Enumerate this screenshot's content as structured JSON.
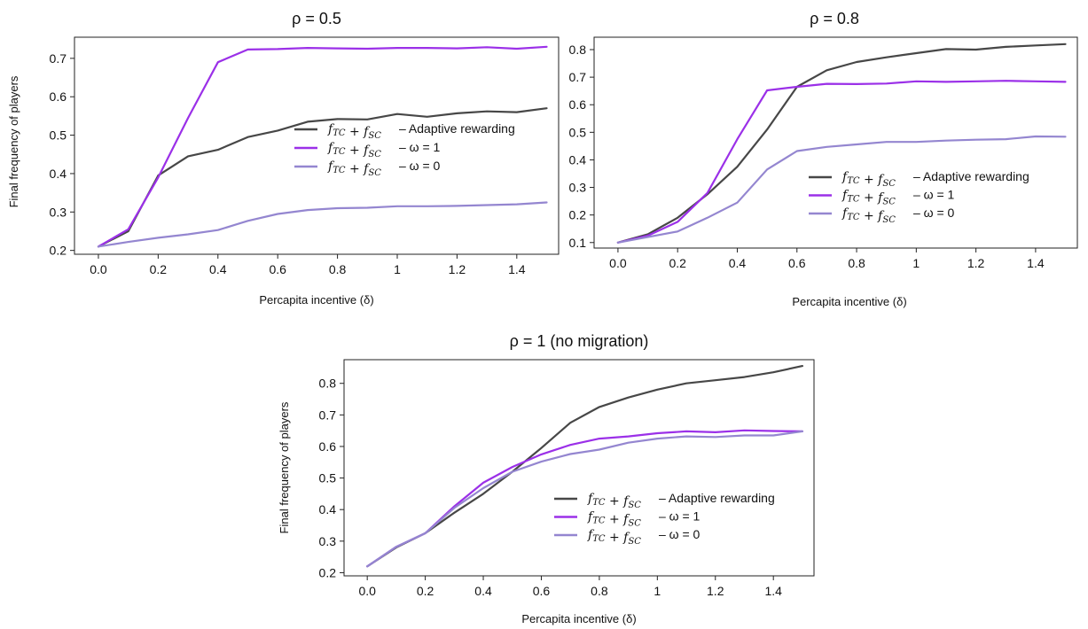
{
  "chart_data": [
    {
      "type": "line",
      "title": "ρ = 0.5",
      "xlabel": "Percapita incentive (δ)",
      "ylabel": "Final frequency of players",
      "xlim": [
        -0.08,
        1.54
      ],
      "ylim": [
        0.19,
        0.755
      ],
      "xticks": [
        0,
        0.2,
        0.4,
        0.6,
        0.8,
        1,
        1.2,
        1.4
      ],
      "xtick_labels": [
        "0.0",
        "0.2",
        "0.4",
        "0.6",
        "0.8",
        "1",
        "1.2",
        "1.4"
      ],
      "yticks": [
        0.2,
        0.3,
        0.4,
        0.5,
        0.6,
        0.7
      ],
      "ytick_labels": [
        "0.2",
        "0.3",
        "0.4",
        "0.5",
        "0.6",
        "0.7"
      ],
      "legend_position": "center-right",
      "x": [
        0,
        0.1,
        0.2,
        0.3,
        0.4,
        0.5,
        0.6,
        0.7,
        0.8,
        0.9,
        1.0,
        1.1,
        1.2,
        1.3,
        1.4,
        1.5
      ],
      "series": [
        {
          "name": "fTC + fSC – Adaptive rewarding",
          "legend_main": "fTC + fSC",
          "legend_tail": "– Adaptive rewarding",
          "color": "#474747",
          "values": [
            0.21,
            0.25,
            0.395,
            0.445,
            0.462,
            0.495,
            0.512,
            0.535,
            0.542,
            0.541,
            0.555,
            0.548,
            0.557,
            0.562,
            0.56,
            0.57
          ]
        },
        {
          "name": "fTC + fSC – ω = 1",
          "legend_main": "fTC + fSC",
          "legend_tail": "– ω = 1",
          "color": "#9b30e8",
          "values": [
            0.21,
            0.255,
            0.39,
            0.545,
            0.69,
            0.723,
            0.724,
            0.727,
            0.726,
            0.725,
            0.727,
            0.727,
            0.726,
            0.729,
            0.725,
            0.73
          ]
        },
        {
          "name": "fTC + fSC – ω = 0",
          "legend_main": "fTC + fSC",
          "legend_tail": "– ω = 0",
          "color": "#9486d0",
          "values": [
            0.21,
            0.222,
            0.233,
            0.242,
            0.253,
            0.277,
            0.295,
            0.305,
            0.31,
            0.311,
            0.315,
            0.315,
            0.316,
            0.318,
            0.32,
            0.325
          ]
        }
      ]
    },
    {
      "type": "line",
      "title": "ρ = 0.8",
      "xlabel": "Percapita incentive (δ)",
      "ylabel": "",
      "xlim": [
        -0.08,
        1.54
      ],
      "ylim": [
        0.08,
        0.845
      ],
      "xticks": [
        0,
        0.2,
        0.4,
        0.6,
        0.8,
        1,
        1.2,
        1.4
      ],
      "xtick_labels": [
        "0.0",
        "0.2",
        "0.4",
        "0.6",
        "0.8",
        "1",
        "1.2",
        "1.4"
      ],
      "yticks": [
        0.1,
        0.2,
        0.3,
        0.4,
        0.5,
        0.6,
        0.7,
        0.8
      ],
      "ytick_labels": [
        "0.1",
        "0.2",
        "0.3",
        "0.4",
        "0.5",
        "0.6",
        "0.7",
        "0.8"
      ],
      "legend_position": "center-right",
      "x": [
        0,
        0.1,
        0.2,
        0.3,
        0.4,
        0.5,
        0.6,
        0.7,
        0.8,
        0.9,
        1.0,
        1.1,
        1.2,
        1.3,
        1.4,
        1.5
      ],
      "series": [
        {
          "name": "fTC + fSC – Adaptive rewarding",
          "legend_main": "fTC + fSC",
          "legend_tail": "– Adaptive rewarding",
          "color": "#474747",
          "values": [
            0.1,
            0.13,
            0.19,
            0.275,
            0.375,
            0.51,
            0.665,
            0.725,
            0.755,
            0.772,
            0.787,
            0.802,
            0.8,
            0.81,
            0.815,
            0.82
          ]
        },
        {
          "name": "fTC + fSC – ω = 1",
          "legend_main": "fTC + fSC",
          "legend_tail": "– ω = 1",
          "color": "#9b30e8",
          "values": [
            0.1,
            0.125,
            0.175,
            0.28,
            0.475,
            0.652,
            0.665,
            0.676,
            0.675,
            0.677,
            0.685,
            0.683,
            0.685,
            0.687,
            0.685,
            0.683
          ]
        },
        {
          "name": "fTC + fSC – ω = 0",
          "legend_main": "fTC + fSC",
          "legend_tail": "– ω = 0",
          "color": "#9486d0",
          "values": [
            0.1,
            0.12,
            0.14,
            0.19,
            0.245,
            0.365,
            0.432,
            0.447,
            0.456,
            0.465,
            0.465,
            0.47,
            0.473,
            0.475,
            0.485,
            0.484
          ]
        }
      ]
    },
    {
      "type": "line",
      "title": "ρ = 1 (no migration)",
      "xlabel": "Percapita incentive (δ)",
      "ylabel": "Final frequency of players",
      "xlim": [
        -0.08,
        1.54
      ],
      "ylim": [
        0.19,
        0.875
      ],
      "xticks": [
        0,
        0.2,
        0.4,
        0.6,
        0.8,
        1,
        1.2,
        1.4
      ],
      "xtick_labels": [
        "0.0",
        "0.2",
        "0.4",
        "0.6",
        "0.8",
        "1",
        "1.2",
        "1.4"
      ],
      "yticks": [
        0.2,
        0.3,
        0.4,
        0.5,
        0.6,
        0.7,
        0.8
      ],
      "ytick_labels": [
        "0.2",
        "0.3",
        "0.4",
        "0.5",
        "0.6",
        "0.7",
        "0.8"
      ],
      "legend_position": "center-right",
      "x": [
        0,
        0.1,
        0.2,
        0.3,
        0.4,
        0.5,
        0.6,
        0.7,
        0.8,
        0.9,
        1.0,
        1.1,
        1.2,
        1.3,
        1.4,
        1.5
      ],
      "series": [
        {
          "name": "fTC + fSC – Adaptive rewarding",
          "legend_main": "fTC + fSC",
          "legend_tail": "– Adaptive rewarding",
          "color": "#474747",
          "values": [
            0.22,
            0.28,
            0.325,
            0.39,
            0.45,
            0.52,
            0.595,
            0.675,
            0.725,
            0.755,
            0.78,
            0.8,
            0.81,
            0.82,
            0.835,
            0.855
          ]
        },
        {
          "name": "fTC + fSC – ω = 1",
          "legend_main": "fTC + fSC",
          "legend_tail": "– ω = 1",
          "color": "#9b30e8",
          "values": [
            0.22,
            0.282,
            0.325,
            0.41,
            0.485,
            0.535,
            0.575,
            0.605,
            0.625,
            0.632,
            0.642,
            0.648,
            0.645,
            0.651,
            0.649,
            0.648
          ]
        },
        {
          "name": "fTC + fSC – ω = 0",
          "legend_main": "fTC + fSC",
          "legend_tail": "– ω = 0",
          "color": "#9486d0",
          "values": [
            0.22,
            0.282,
            0.325,
            0.405,
            0.468,
            0.52,
            0.552,
            0.576,
            0.59,
            0.612,
            0.625,
            0.632,
            0.63,
            0.635,
            0.635,
            0.648
          ]
        }
      ]
    }
  ]
}
